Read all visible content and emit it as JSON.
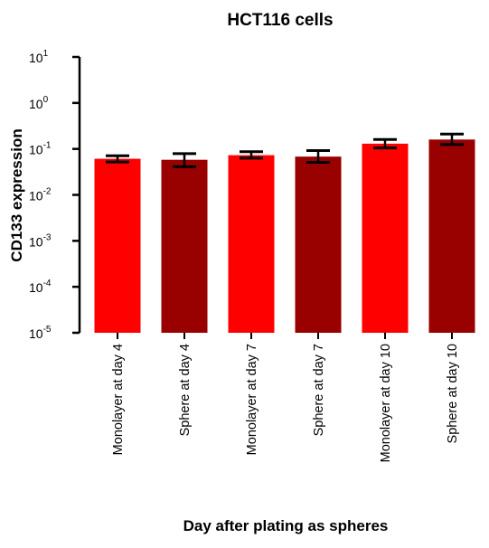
{
  "chart_data": {
    "type": "bar",
    "title": "HCT116 cells",
    "xlabel": "Day after plating as spheres",
    "ylabel": "CD133 expression",
    "yscale": "log",
    "ylim": [
      1e-05,
      10
    ],
    "yticks": [
      {
        "base": "10",
        "exp": "1",
        "value": 10
      },
      {
        "base": "10",
        "exp": "0",
        "value": 1
      },
      {
        "base": "10",
        "exp": "-1",
        "value": 0.1
      },
      {
        "base": "10",
        "exp": "-2",
        "value": 0.01
      },
      {
        "base": "10",
        "exp": "-3",
        "value": 0.001
      },
      {
        "base": "10",
        "exp": "-4",
        "value": 0.0001
      },
      {
        "base": "10",
        "exp": "-5",
        "value": 1e-05
      }
    ],
    "categories": [
      "Monolayer at day 4",
      "Sphere at day 4",
      "Monolayer at day 7",
      "Sphere at day 7",
      "Monolayer at day 10",
      "Sphere at day 10"
    ],
    "values": [
      0.061,
      0.058,
      0.073,
      0.068,
      0.13,
      0.16
    ],
    "error_upper": [
      0.071,
      0.079,
      0.087,
      0.092,
      0.16,
      0.21
    ],
    "error_lower": [
      0.052,
      0.041,
      0.063,
      0.051,
      0.105,
      0.125
    ],
    "colors": [
      "#ff0000",
      "#990000",
      "#ff0000",
      "#990000",
      "#ff0000",
      "#990000"
    ],
    "grid": false,
    "legend": "none"
  }
}
